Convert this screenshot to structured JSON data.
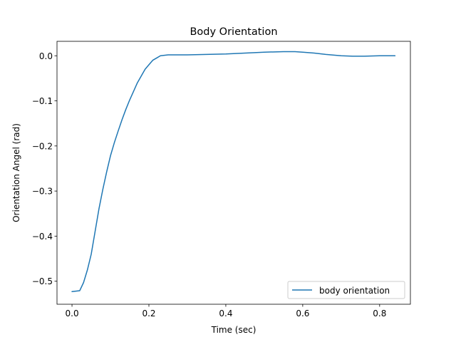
{
  "chart_data": {
    "type": "line",
    "title": "Body Orientation",
    "xlabel": "Time (sec)",
    "ylabel": "Orientation Angel (rad)",
    "xlim": [
      -0.039,
      0.88
    ],
    "ylim": [
      -0.551,
      0.032
    ],
    "xticks": [
      0.0,
      0.2,
      0.4,
      0.6,
      0.8
    ],
    "xtick_labels": [
      "0.0",
      "0.2",
      "0.4",
      "0.6",
      "0.8"
    ],
    "yticks": [
      0.0,
      -0.1,
      -0.2,
      -0.3,
      -0.4,
      -0.5
    ],
    "ytick_labels": [
      "0.0",
      "−0.1",
      "−0.2",
      "−0.3",
      "−0.4",
      "−0.5"
    ],
    "grid": false,
    "legend_position": "lower-right",
    "series": [
      {
        "name": "body orientation",
        "color": "#1f77b4",
        "x": [
          0.0,
          0.02,
          0.03,
          0.04,
          0.05,
          0.06,
          0.07,
          0.08,
          0.09,
          0.1,
          0.11,
          0.12,
          0.13,
          0.14,
          0.15,
          0.16,
          0.17,
          0.18,
          0.19,
          0.2,
          0.21,
          0.22,
          0.23,
          0.24,
          0.25,
          0.27,
          0.3,
          0.35,
          0.4,
          0.45,
          0.5,
          0.55,
          0.58,
          0.6,
          0.63,
          0.66,
          0.7,
          0.73,
          0.76,
          0.8,
          0.84
        ],
        "y": [
          -0.523,
          -0.521,
          -0.503,
          -0.475,
          -0.44,
          -0.39,
          -0.34,
          -0.297,
          -0.258,
          -0.222,
          -0.193,
          -0.167,
          -0.142,
          -0.119,
          -0.098,
          -0.079,
          -0.06,
          -0.045,
          -0.03,
          -0.02,
          -0.01,
          -0.005,
          0.0,
          0.001,
          0.002,
          0.002,
          0.002,
          0.003,
          0.004,
          0.006,
          0.008,
          0.009,
          0.009,
          0.008,
          0.006,
          0.003,
          0.0,
          -0.001,
          -0.001,
          0.0,
          0.0
        ]
      }
    ]
  }
}
